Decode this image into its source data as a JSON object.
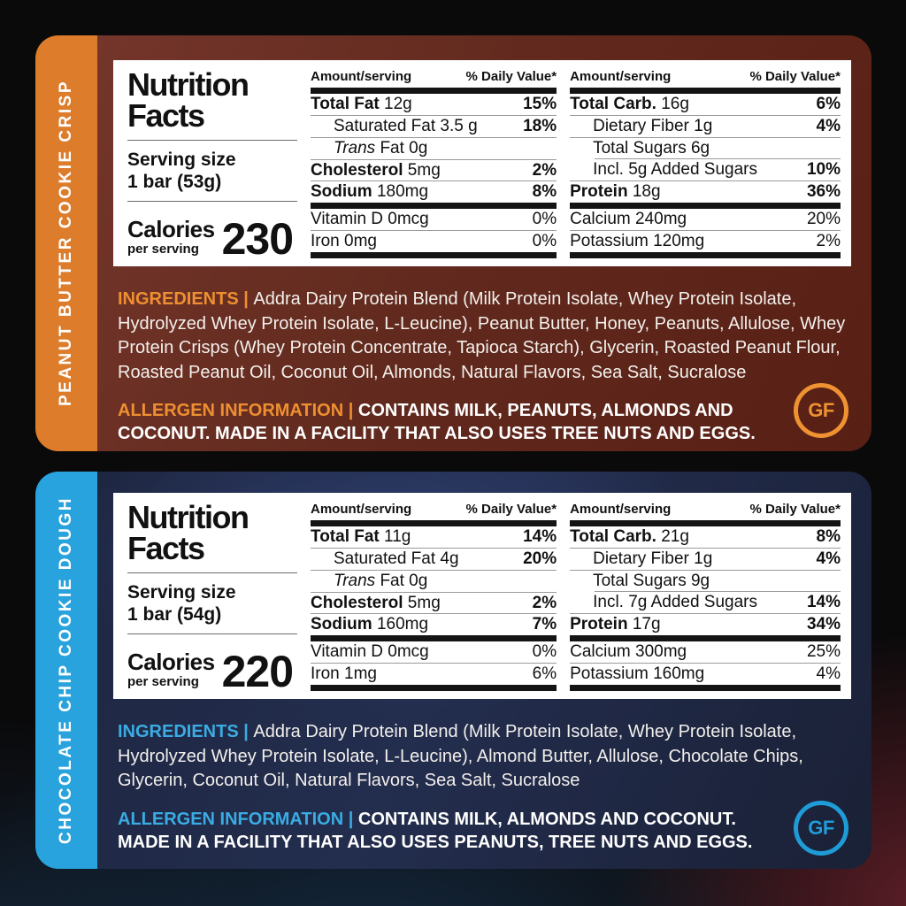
{
  "cards": [
    {
      "tab": "PEANUT BUTTER COOKIE CRISP",
      "tab_color": "#dd7d2c",
      "accent_color": "#ee8f31",
      "card_color": "#622a1e",
      "label": {
        "title_line1": "Nutrition",
        "title_line2": "Facts",
        "serving_label": "Serving size",
        "serving_value": "1 bar (53g)",
        "calories_label": "Calories",
        "calories_sub": "per serving",
        "calories_value": "230",
        "col1": {
          "header_left": "Amount/serving",
          "header_right": "% Daily Value*",
          "rows": [
            {
              "bold": "Total Fat",
              "rest": " 12g",
              "dv": "15%"
            },
            {
              "rest": "Saturated Fat 3.5 g",
              "dv": "18%"
            },
            {
              "italic": "Trans",
              "rest": " Fat 0g",
              "dv": ""
            },
            {
              "bold": "Cholesterol",
              "rest": " 5mg",
              "dv": "2%"
            },
            {
              "bold": "Sodium",
              "rest": " 180mg",
              "dv": "8%"
            },
            {
              "rest": "Vitamin D 0mcg",
              "dv": "0%"
            },
            {
              "rest": "Iron 0mg",
              "dv": "0%"
            }
          ]
        },
        "col2": {
          "header_left": "Amount/serving",
          "header_right": "% Daily Value*",
          "rows": [
            {
              "bold": "Total Carb.",
              "rest": " 16g",
              "dv": "6%"
            },
            {
              "rest": "Dietary Fiber 1g",
              "dv": "4%"
            },
            {
              "rest": "Total Sugars 6g",
              "dv": ""
            },
            {
              "rest": "Incl. 5g Added Sugars",
              "dv": "10%"
            },
            {
              "bold": "Protein",
              "rest": " 18g",
              "dv": "36%"
            },
            {
              "rest": "Calcium 240mg",
              "dv": "20%"
            },
            {
              "rest": "Potassium 120mg",
              "dv": "2%"
            }
          ]
        }
      },
      "ingredients_label": "INGREDIENTS | ",
      "ingredients_text": "Addra Dairy Protein Blend (Milk Protein Isolate, Whey Protein Isolate, Hydrolyzed Whey Protein Isolate, L-Leucine), Peanut Butter, Honey, Peanuts, Allulose, Whey Protein Crisps (Whey Protein Concentrate, Tapioca Starch), Glycerin, Roasted Peanut Flour, Roasted Peanut Oil, Coconut Oil, Almonds, Natural Flavors, Sea Salt, Sucralose",
      "allergen_label": "ALLERGEN INFORMATION | ",
      "allergen_text": "CONTAINS MILK, PEANUTS, ALMONDS AND COCONUT. MADE IN A FACILITY THAT ALSO USES TREE NUTS AND EGGS.",
      "gf_badge": "GF"
    },
    {
      "tab": "CHOCOLATE CHIP COOKIE DOUGH",
      "tab_color": "#29a3dd",
      "accent_color": "#3aace3",
      "card_color": "#232d4e",
      "label": {
        "title_line1": "Nutrition",
        "title_line2": "Facts",
        "serving_label": "Serving size",
        "serving_value": "1 bar (54g)",
        "calories_label": "Calories",
        "calories_sub": "per serving",
        "calories_value": "220",
        "col1": {
          "header_left": "Amount/serving",
          "header_right": "% Daily Value*",
          "rows": [
            {
              "bold": "Total Fat",
              "rest": " 11g",
              "dv": "14%"
            },
            {
              "rest": "Saturated Fat 4g",
              "dv": "20%"
            },
            {
              "italic": "Trans",
              "rest": " Fat 0g",
              "dv": ""
            },
            {
              "bold": "Cholesterol",
              "rest": " 5mg",
              "dv": "2%"
            },
            {
              "bold": "Sodium",
              "rest": " 160mg",
              "dv": "7%"
            },
            {
              "rest": "Vitamin D 0mcg",
              "dv": "0%"
            },
            {
              "rest": "Iron 1mg",
              "dv": "6%"
            }
          ]
        },
        "col2": {
          "header_left": "Amount/serving",
          "header_right": "% Daily Value*",
          "rows": [
            {
              "bold": "Total Carb.",
              "rest": " 21g",
              "dv": "8%"
            },
            {
              "rest": "Dietary Fiber 1g",
              "dv": "4%"
            },
            {
              "rest": "Total Sugars 9g",
              "dv": ""
            },
            {
              "rest": "Incl. 7g Added Sugars",
              "dv": "14%"
            },
            {
              "bold": "Protein",
              "rest": " 17g",
              "dv": "34%"
            },
            {
              "rest": "Calcium 300mg",
              "dv": "25%"
            },
            {
              "rest": "Potassium 160mg",
              "dv": "4%"
            }
          ]
        }
      },
      "ingredients_label": "INGREDIENTS | ",
      "ingredients_text": "Addra Dairy Protein Blend (Milk Protein Isolate, Whey Protein Isolate, Hydrolyzed Whey Protein Isolate, L-Leucine), Almond Butter, Allulose, Chocolate Chips, Glycerin, Coconut Oil, Natural Flavors, Sea Salt, Sucralose",
      "allergen_label": "ALLERGEN INFORMATION | ",
      "allergen_text": "CONTAINS MILK, ALMONDS AND COCONUT. MADE IN A FACILITY THAT ALSO USES PEANUTS, TREE NUTS AND EGGS.",
      "gf_badge": "GF"
    }
  ]
}
